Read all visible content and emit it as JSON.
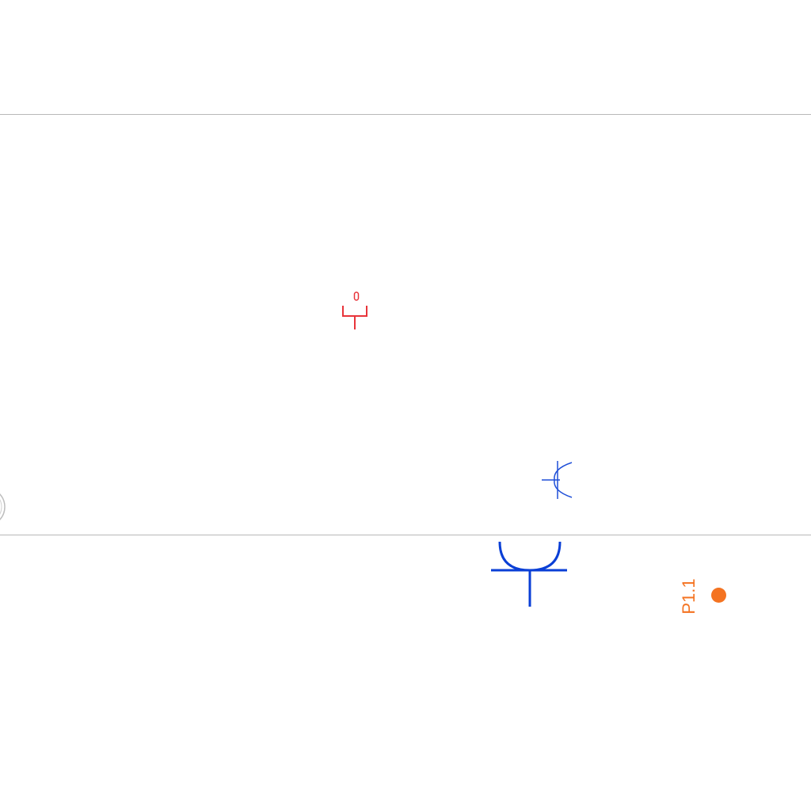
{
  "diagram": {
    "symbols": [
      {
        "name": "socket-symbol-small-red",
        "color": "#e8343a"
      },
      {
        "name": "socket-symbol-small-blue",
        "color": "#1f4fd8"
      },
      {
        "name": "socket-symbol-large-blue",
        "color": "#0a3fd6"
      }
    ],
    "point": {
      "label": "P1.1",
      "color": "#f47321"
    },
    "line_color": "#b8b8b8"
  }
}
